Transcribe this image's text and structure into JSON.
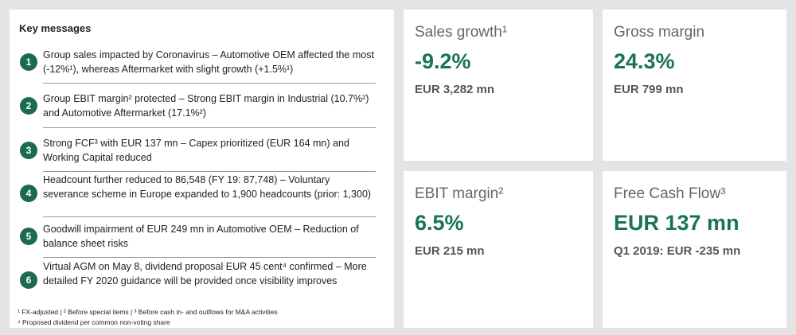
{
  "key_messages": {
    "title": "Key messages",
    "items": [
      {
        "number": "1",
        "text": "Group sales impacted by Coronavirus – Automotive OEM affected the most (-12%¹), whereas Aftermarket with slight growth (+1.5%¹)"
      },
      {
        "number": "2",
        "text": "Group EBIT margin² protected – Strong EBIT margin in Industrial (10.7%²) and Automotive Aftermarket (17.1%²)"
      },
      {
        "number": "3",
        "text": "Strong FCF³ with EUR 137 mn – Capex prioritized (EUR 164 mn) and Working Capital reduced"
      },
      {
        "number": "4",
        "text": "Headcount further reduced to 86,548 (FY 19: 87,748) – Voluntary severance scheme in Europe expanded to 1,900 headcounts (prior: 1,300)"
      },
      {
        "number": "5",
        "text": "Goodwill impairment of EUR 249 mn in Automotive OEM – Reduction of balance sheet risks"
      },
      {
        "number": "6",
        "text": "Virtual AGM on May 8, dividend proposal EUR 45 cent⁴ confirmed – More detailed FY 2020 guidance will be provided once visibility improves"
      }
    ],
    "footnotes": [
      "¹ FX-adjusted | ² Before special items | ³ Before cash in- and outflows for M&A activities",
      "⁴ Proposed dividend per common non-voting share"
    ]
  },
  "kpis": [
    {
      "title": "Sales growth¹",
      "value": "-9.2%",
      "detail": "EUR 3,282 mn"
    },
    {
      "title": "Gross margin",
      "value": "24.3%",
      "detail": "EUR 799 mn"
    },
    {
      "title": "EBIT margin²",
      "value": "6.5%",
      "detail": "EUR 215 mn"
    },
    {
      "title": "Free Cash Flow³",
      "value": "EUR 137 mn",
      "detail": "Q1 2019: EUR -235 mn"
    }
  ]
}
